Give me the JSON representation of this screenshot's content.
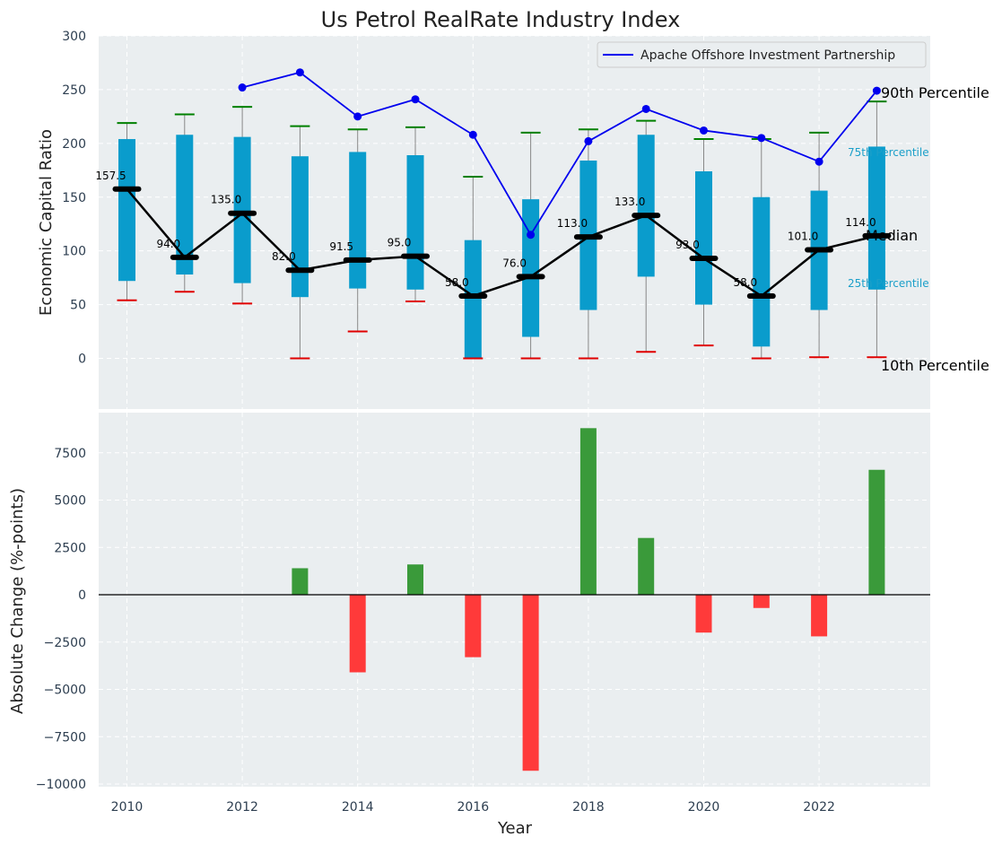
{
  "chart_data": [
    {
      "type": "box_percentile",
      "title": "Us Petrol RealRate Industry Index",
      "xlabel": "",
      "ylabel": "Economic Capital Ratio",
      "ylim": [
        -45,
        300
      ],
      "yticks": [
        0,
        50,
        100,
        150,
        200,
        250,
        300
      ],
      "xticks": [
        2010,
        2012,
        2014,
        2016,
        2018,
        2020,
        2022
      ],
      "years": [
        2010,
        2011,
        2012,
        2013,
        2014,
        2015,
        2016,
        2017,
        2018,
        2019,
        2020,
        2021,
        2022,
        2023
      ],
      "p10": [
        54,
        62,
        51,
        0,
        25,
        53,
        0,
        0,
        0,
        6,
        12,
        0,
        1,
        1
      ],
      "p25": [
        72,
        78,
        70,
        57,
        65,
        64,
        0,
        20,
        45,
        76,
        50,
        11,
        45,
        64
      ],
      "median": [
        157.5,
        94.0,
        135.0,
        82.0,
        91.5,
        95.0,
        58.0,
        76.0,
        113.0,
        133.0,
        93.0,
        58.0,
        101.0,
        114.0
      ],
      "median_labels": [
        "157.5",
        "94.0",
        "135.0",
        "82.0",
        "91.5",
        "95.0",
        "58.0",
        "76.0",
        "113.0",
        "133.0",
        "93.0",
        "58.0",
        "101.0",
        "114.0"
      ],
      "p75": [
        204,
        208,
        206,
        188,
        192,
        189,
        110,
        148,
        184,
        208,
        174,
        150,
        156,
        197
      ],
      "p90": [
        219,
        227,
        234,
        216,
        213,
        215,
        169,
        210,
        213,
        221,
        204,
        204,
        210,
        239
      ],
      "company": {
        "name": "Apache Offshore Investment Partnership",
        "years": [
          2012,
          2013,
          2014,
          2015,
          2016,
          2017,
          2018,
          2019,
          2020,
          2021,
          2022,
          2023
        ],
        "values": [
          252,
          266,
          225,
          241,
          208,
          115,
          202,
          232,
          212,
          205,
          183,
          249
        ]
      },
      "annotations": {
        "p90": "90th Percentile",
        "p75": "75th Percentile",
        "median": "Median",
        "p25": "25th Percentile",
        "p10": "10th Percentile"
      },
      "legend": "top-right"
    },
    {
      "type": "bar",
      "xlabel": "Year",
      "ylabel": "Absolute Change (%-points)",
      "ylim": [
        -10100,
        9700
      ],
      "yticks": [
        -10000,
        -7500,
        -5000,
        -2500,
        0,
        2500,
        5000,
        7500
      ],
      "xticks": [
        2010,
        2012,
        2014,
        2016,
        2018,
        2020,
        2022
      ],
      "years": [
        2013,
        2014,
        2015,
        2016,
        2017,
        2018,
        2019,
        2020,
        2021,
        2022,
        2023
      ],
      "values": [
        1400,
        -4100,
        1600,
        -3300,
        -9300,
        8800,
        3000,
        -2000,
        -700,
        -2200,
        6600
      ],
      "colors": {
        "positive": "#3a9a3a",
        "negative": "#ff3a3a"
      }
    }
  ],
  "colors": {
    "panel_bg": "#eaeef0",
    "box": "#0a9ccc",
    "p90_cap": "#008000",
    "p10_cap": "#e00000",
    "median_line": "#000000",
    "company_line": "#0000ee",
    "whisker": "#888888"
  }
}
